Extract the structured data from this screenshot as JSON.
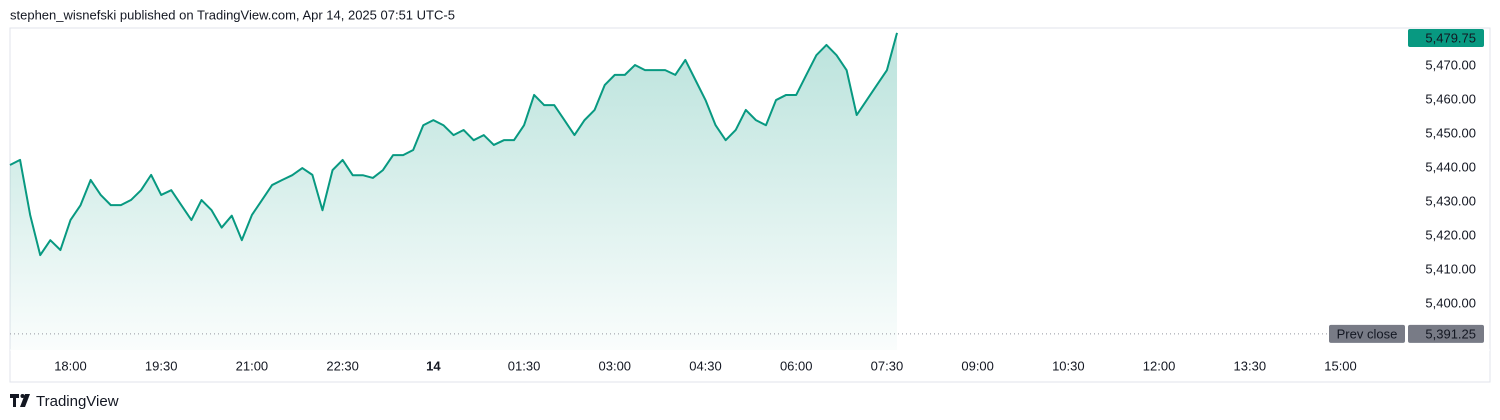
{
  "header": "stephen_wisnefski published on TradingView.com, Apr 14, 2025 07:51 UTC-5",
  "footer": "TradingView",
  "chart_data": {
    "type": "area",
    "color": "#089981",
    "x": [
      0,
      10,
      20,
      30,
      40,
      50,
      60,
      70,
      80,
      90,
      100,
      110,
      120,
      130,
      140,
      150,
      160,
      170,
      180,
      190,
      200,
      210,
      220,
      230,
      240,
      250,
      260,
      270,
      280,
      290,
      300,
      310,
      320,
      330,
      340,
      350,
      360,
      370,
      380,
      390,
      400,
      410,
      420,
      430,
      440,
      450,
      460,
      470,
      480,
      490,
      500,
      510,
      520,
      530,
      540,
      550,
      560,
      570,
      580,
      590,
      600,
      610,
      620,
      630,
      640,
      650,
      660,
      670,
      680,
      690,
      700,
      710,
      720,
      730,
      740,
      750,
      760,
      770,
      780,
      790,
      800,
      810,
      820,
      830,
      840,
      850,
      860,
      870,
      880
    ],
    "values": [
      5440.9,
      5442.4,
      5426.2,
      5414.4,
      5418.8,
      5415.9,
      5424.7,
      5429.1,
      5436.5,
      5432.1,
      5429.1,
      5429.1,
      5430.6,
      5433.5,
      5438.0,
      5432.1,
      5433.5,
      5429.1,
      5424.7,
      5430.6,
      5427.6,
      5422.5,
      5426.0,
      5418.8,
      5426.2,
      5430.6,
      5435.0,
      5436.5,
      5437.9,
      5440.0,
      5438.0,
      5427.6,
      5439.4,
      5442.4,
      5437.9,
      5437.9,
      5437.1,
      5439.4,
      5443.8,
      5443.8,
      5445.3,
      5452.6,
      5454.1,
      5452.6,
      5449.7,
      5451.2,
      5448.2,
      5449.7,
      5446.8,
      5448.2,
      5448.2,
      5452.6,
      5461.5,
      5458.5,
      5458.5,
      5454.1,
      5449.7,
      5454.1,
      5457.1,
      5464.4,
      5467.4,
      5467.4,
      5470.3,
      5468.8,
      5468.8,
      5468.8,
      5467.4,
      5471.8,
      5465.9,
      5460.0,
      5452.6,
      5448.2,
      5451.2,
      5457.1,
      5454.1,
      5452.6,
      5460.0,
      5461.5,
      5461.5,
      5467.4,
      5473.2,
      5476.2,
      5473.2,
      5468.8,
      5455.6,
      5460.0,
      5464.4,
      5468.8,
      5479.75
    ],
    "xlim": [
      0,
      1381
    ],
    "xticks": [
      {
        "value": 60,
        "label": "18:00"
      },
      {
        "value": 150,
        "label": "19:30"
      },
      {
        "value": 240,
        "label": "21:00"
      },
      {
        "value": 330,
        "label": "22:30"
      },
      {
        "value": 420,
        "label": "14"
      },
      {
        "value": 510,
        "label": "01:30"
      },
      {
        "value": 600,
        "label": "03:00"
      },
      {
        "value": 690,
        "label": "04:30"
      },
      {
        "value": 780,
        "label": "06:00"
      },
      {
        "value": 870,
        "label": "07:30"
      },
      {
        "value": 960,
        "label": "09:00"
      },
      {
        "value": 1050,
        "label": "10:30"
      },
      {
        "value": 1140,
        "label": "12:00"
      },
      {
        "value": 1230,
        "label": "13:30"
      },
      {
        "value": 1320,
        "label": "15:00"
      }
    ],
    "ylim": [
      5386.5,
      5480.6
    ],
    "yticks": [
      {
        "value": 5470,
        "label": "5,470.00"
      },
      {
        "value": 5460,
        "label": "5,460.00"
      },
      {
        "value": 5450,
        "label": "5,450.00"
      },
      {
        "value": 5440,
        "label": "5,440.00"
      },
      {
        "value": 5430,
        "label": "5,430.00"
      },
      {
        "value": 5420,
        "label": "5,420.00"
      },
      {
        "value": 5410,
        "label": "5,410.00"
      },
      {
        "value": 5400,
        "label": "5,400.00"
      }
    ],
    "last_price": {
      "value": 5479.75,
      "label": "5,479.75"
    },
    "prev_close_label": "Prev close",
    "prev_close": {
      "value": 5391.25,
      "label": "5,391.25"
    }
  }
}
